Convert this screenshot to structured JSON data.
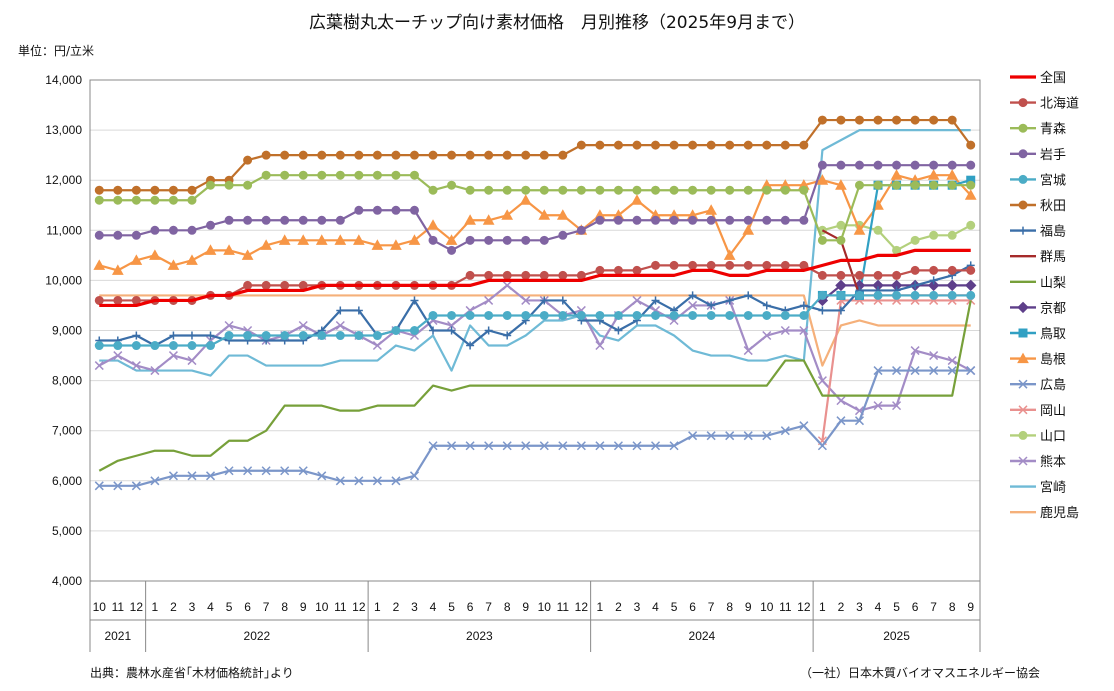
{
  "chart_data": {
    "type": "line",
    "title": "広葉樹丸太ーチップ向け素材価格　月別推移（2025年9月まで）",
    "unit_label": "単位：円/立米",
    "source": "出典：農林水産省｢木材価格統計｣より",
    "credit": "（一社）日本木質バイオマスエネルギー協会",
    "ylim": [
      4000,
      14000
    ],
    "yticks": [
      "4,000",
      "5,000",
      "6,000",
      "7,000",
      "8,000",
      "9,000",
      "10,000",
      "11,000",
      "12,000",
      "13,000",
      "14,000"
    ],
    "month_labels": [
      "10",
      "11",
      "12",
      "1",
      "2",
      "3",
      "4",
      "5",
      "6",
      "7",
      "8",
      "9",
      "10",
      "11",
      "12",
      "1",
      "2",
      "3",
      "4",
      "5",
      "6",
      "7",
      "8",
      "9",
      "10",
      "11",
      "12",
      "1",
      "2",
      "3",
      "4",
      "5",
      "6",
      "7",
      "8",
      "9",
      "10",
      "11",
      "12",
      "1",
      "2",
      "3",
      "4",
      "5",
      "6",
      "7",
      "8",
      "9"
    ],
    "years": [
      {
        "label": "2021",
        "start": 0,
        "count": 3
      },
      {
        "label": "2022",
        "start": 3,
        "count": 12
      },
      {
        "label": "2023",
        "start": 15,
        "count": 12
      },
      {
        "label": "2024",
        "start": 27,
        "count": 12
      },
      {
        "label": "2025",
        "start": 39,
        "count": 9
      }
    ],
    "series": [
      {
        "name": "全国",
        "color": "#ee0000",
        "marker": "none",
        "width": 3.2,
        "values": [
          9500,
          9500,
          9500,
          9600,
          9600,
          9600,
          9700,
          9700,
          9800,
          9800,
          9800,
          9800,
          9900,
          9900,
          9900,
          9900,
          9900,
          9900,
          9900,
          9900,
          9900,
          10000,
          10000,
          10000,
          10000,
          10000,
          10000,
          10100,
          10100,
          10100,
          10100,
          10100,
          10200,
          10200,
          10100,
          10100,
          10200,
          10200,
          10200,
          10300,
          10400,
          10400,
          10500,
          10500,
          10600,
          10600,
          10600,
          10600
        ]
      },
      {
        "name": "北海道",
        "color": "#c0504d",
        "marker": "circle",
        "values": [
          9600,
          9600,
          9600,
          9600,
          9600,
          9600,
          9700,
          9700,
          9900,
          9900,
          9900,
          9900,
          9900,
          9900,
          9900,
          9900,
          9900,
          9900,
          9900,
          9900,
          10100,
          10100,
          10100,
          10100,
          10100,
          10100,
          10100,
          10200,
          10200,
          10200,
          10300,
          10300,
          10300,
          10300,
          10300,
          10300,
          10300,
          10300,
          10300,
          10100,
          10100,
          10100,
          10100,
          10100,
          10200,
          10200,
          10200,
          10200
        ]
      },
      {
        "name": "青森",
        "color": "#9bbb59",
        "marker": "circle",
        "values": [
          11600,
          11600,
          11600,
          11600,
          11600,
          11600,
          11900,
          11900,
          11900,
          12100,
          12100,
          12100,
          12100,
          12100,
          12100,
          12100,
          12100,
          12100,
          11800,
          11900,
          11800,
          11800,
          11800,
          11800,
          11800,
          11800,
          11800,
          11800,
          11800,
          11800,
          11800,
          11800,
          11800,
          11800,
          11800,
          11800,
          11800,
          11800,
          11800,
          10800,
          10800,
          11900,
          11900,
          11900,
          11900,
          11900,
          11900,
          11900
        ]
      },
      {
        "name": "岩手",
        "color": "#8064a2",
        "marker": "circle",
        "values": [
          10900,
          10900,
          10900,
          11000,
          11000,
          11000,
          11100,
          11200,
          11200,
          11200,
          11200,
          11200,
          11200,
          11200,
          11400,
          11400,
          11400,
          11400,
          10800,
          10600,
          10800,
          10800,
          10800,
          10800,
          10800,
          10900,
          11000,
          11200,
          11200,
          11200,
          11200,
          11200,
          11200,
          11200,
          11200,
          11200,
          11200,
          11200,
          11200,
          12300,
          12300,
          12300,
          12300,
          12300,
          12300,
          12300,
          12300,
          12300
        ]
      },
      {
        "name": "宮城",
        "color": "#4bacc6",
        "marker": "circle",
        "values": [
          8700,
          8700,
          8700,
          8700,
          8700,
          8700,
          8700,
          8900,
          8900,
          8900,
          8900,
          8900,
          8900,
          8900,
          8900,
          8900,
          9000,
          9000,
          9300,
          9300,
          9300,
          9300,
          9300,
          9300,
          9300,
          9300,
          9300,
          9300,
          9300,
          9300,
          9300,
          9300,
          9300,
          9300,
          9300,
          9300,
          9300,
          9300,
          9300,
          9700,
          9700,
          9700,
          9700,
          9700,
          9700,
          9700,
          9700,
          9700
        ]
      },
      {
        "name": "秋田",
        "color": "#c0702a",
        "marker": "circle",
        "values": [
          11800,
          11800,
          11800,
          11800,
          11800,
          11800,
          12000,
          12000,
          12400,
          12500,
          12500,
          12500,
          12500,
          12500,
          12500,
          12500,
          12500,
          12500,
          12500,
          12500,
          12500,
          12500,
          12500,
          12500,
          12500,
          12500,
          12700,
          12700,
          12700,
          12700,
          12700,
          12700,
          12700,
          12700,
          12700,
          12700,
          12700,
          12700,
          12700,
          13200,
          13200,
          13200,
          13200,
          13200,
          13200,
          13200,
          13200,
          12700
        ]
      },
      {
        "name": "福島",
        "color": "#3a6ea8",
        "marker": "plus",
        "values": [
          8800,
          8800,
          8900,
          8700,
          8900,
          8900,
          8900,
          8800,
          8800,
          8800,
          8800,
          8800,
          9000,
          9400,
          9400,
          8900,
          9000,
          9600,
          9000,
          9000,
          8700,
          9000,
          8900,
          9200,
          9600,
          9600,
          9200,
          9200,
          9000,
          9200,
          9600,
          9400,
          9700,
          9500,
          9600,
          9700,
          9500,
          9400,
          9500,
          9400,
          9400,
          9800,
          9800,
          9800,
          9900,
          10000,
          10100,
          10300
        ]
      },
      {
        "name": "群馬",
        "color": "#a52a2a",
        "marker": "none",
        "values": [
          null,
          null,
          null,
          null,
          null,
          null,
          null,
          null,
          null,
          null,
          null,
          null,
          null,
          null,
          null,
          null,
          null,
          null,
          null,
          null,
          null,
          null,
          null,
          null,
          null,
          null,
          null,
          null,
          null,
          null,
          null,
          null,
          null,
          null,
          null,
          null,
          null,
          null,
          null,
          11000,
          10800,
          9700,
          9700,
          9700,
          9700,
          9700,
          9700,
          9700
        ]
      },
      {
        "name": "山梨",
        "color": "#77a03a",
        "marker": "none",
        "values": [
          6200,
          6400,
          6500,
          6600,
          6600,
          6500,
          6500,
          6800,
          6800,
          7000,
          7500,
          7500,
          7500,
          7400,
          7400,
          7500,
          7500,
          7500,
          7900,
          7800,
          7900,
          7900,
          7900,
          7900,
          7900,
          7900,
          7900,
          7900,
          7900,
          7900,
          7900,
          7900,
          7900,
          7900,
          7900,
          7900,
          7900,
          8400,
          8400,
          7700,
          7700,
          7700,
          7700,
          7700,
          7700,
          7700,
          7700,
          9600
        ]
      },
      {
        "name": "京都",
        "color": "#5e3f8a",
        "marker": "diamond",
        "values": [
          null,
          null,
          null,
          null,
          null,
          null,
          null,
          null,
          null,
          null,
          null,
          null,
          null,
          null,
          null,
          null,
          null,
          null,
          null,
          null,
          null,
          null,
          null,
          null,
          null,
          null,
          null,
          null,
          null,
          null,
          null,
          null,
          null,
          null,
          null,
          null,
          null,
          null,
          null,
          9600,
          9900,
          9900,
          9900,
          9900,
          9900,
          9900,
          9900,
          9900
        ]
      },
      {
        "name": "鳥取",
        "color": "#31a0c3",
        "marker": "square",
        "values": [
          null,
          null,
          null,
          null,
          null,
          null,
          null,
          null,
          null,
          null,
          null,
          null,
          null,
          null,
          null,
          null,
          null,
          null,
          null,
          null,
          null,
          null,
          null,
          null,
          null,
          null,
          null,
          null,
          null,
          null,
          null,
          null,
          null,
          null,
          null,
          null,
          null,
          null,
          null,
          9700,
          9700,
          9700,
          11900,
          11900,
          11900,
          11900,
          11900,
          12000
        ]
      },
      {
        "name": "島根",
        "color": "#f79646",
        "marker": "triangle",
        "values": [
          10300,
          10200,
          10400,
          10500,
          10300,
          10400,
          10600,
          10600,
          10500,
          10700,
          10800,
          10800,
          10800,
          10800,
          10800,
          10700,
          10700,
          10800,
          11100,
          10800,
          11200,
          11200,
          11300,
          11600,
          11300,
          11300,
          11000,
          11300,
          11300,
          11600,
          11300,
          11300,
          11300,
          11400,
          10500,
          11000,
          11900,
          11900,
          11900,
          12000,
          11900,
          11000,
          11500,
          12100,
          12000,
          12100,
          12100,
          11700
        ]
      },
      {
        "name": "広島",
        "color": "#7b96c9",
        "marker": "x",
        "values": [
          5900,
          5900,
          5900,
          6000,
          6100,
          6100,
          6100,
          6200,
          6200,
          6200,
          6200,
          6200,
          6100,
          6000,
          6000,
          6000,
          6000,
          6100,
          6700,
          6700,
          6700,
          6700,
          6700,
          6700,
          6700,
          6700,
          6700,
          6700,
          6700,
          6700,
          6700,
          6700,
          6900,
          6900,
          6900,
          6900,
          6900,
          7000,
          7100,
          6700,
          7200,
          7200,
          8200,
          8200,
          8200,
          8200,
          8200,
          8200
        ]
      },
      {
        "name": "岡山",
        "color": "#e9918f",
        "marker": "x",
        "values": [
          null,
          null,
          null,
          null,
          null,
          null,
          null,
          null,
          null,
          null,
          null,
          null,
          null,
          null,
          null,
          null,
          null,
          null,
          null,
          null,
          null,
          null,
          null,
          null,
          null,
          null,
          null,
          null,
          null,
          null,
          null,
          null,
          null,
          null,
          null,
          null,
          null,
          null,
          null,
          6800,
          9600,
          9600,
          9600,
          9600,
          9600,
          9600,
          9600,
          9600
        ]
      },
      {
        "name": "山口",
        "color": "#b3d07c",
        "marker": "circle",
        "values": [
          null,
          null,
          null,
          null,
          null,
          null,
          null,
          null,
          null,
          null,
          null,
          null,
          null,
          null,
          null,
          null,
          null,
          null,
          null,
          null,
          null,
          null,
          null,
          null,
          null,
          null,
          null,
          null,
          null,
          null,
          null,
          null,
          null,
          null,
          null,
          null,
          null,
          null,
          null,
          11000,
          11100,
          11100,
          11000,
          10600,
          10800,
          10900,
          10900,
          11100
        ]
      },
      {
        "name": "熊本",
        "color": "#a38cc6",
        "marker": "x",
        "values": [
          8300,
          8500,
          8300,
          8200,
          8500,
          8400,
          8800,
          9100,
          9000,
          8800,
          8900,
          9100,
          8900,
          9100,
          8900,
          8700,
          9000,
          8900,
          9200,
          9100,
          9400,
          9600,
          9900,
          9600,
          9600,
          9300,
          9400,
          8700,
          9300,
          9600,
          9400,
          9200,
          9500,
          9500,
          9600,
          8600,
          8900,
          9000,
          9000,
          8000,
          7600,
          7400,
          7500,
          7500,
          8600,
          8500,
          8400,
          8200
        ]
      },
      {
        "name": "宮崎",
        "color": "#6fbad6",
        "marker": "none",
        "values": [
          8400,
          8400,
          8200,
          8200,
          8200,
          8200,
          8100,
          8500,
          8500,
          8300,
          8300,
          8300,
          8300,
          8400,
          8400,
          8400,
          8700,
          8600,
          8900,
          8200,
          9100,
          8700,
          8700,
          8900,
          9200,
          9200,
          9300,
          8900,
          8800,
          9100,
          9100,
          8900,
          8600,
          8500,
          8500,
          8400,
          8400,
          8500,
          8400,
          12600,
          12800,
          13000,
          13000,
          13000,
          13000,
          13000,
          13000,
          13000
        ]
      },
      {
        "name": "鹿児島",
        "color": "#f5b07a",
        "marker": "none",
        "values": [
          9700,
          9700,
          9700,
          9700,
          9700,
          9700,
          9700,
          9700,
          9700,
          9700,
          9700,
          9700,
          9700,
          9700,
          9700,
          9700,
          9700,
          9700,
          9700,
          9700,
          9700,
          9700,
          9700,
          9700,
          9700,
          9700,
          9700,
          9700,
          9700,
          9700,
          9700,
          9700,
          9700,
          9700,
          9700,
          9700,
          9700,
          9700,
          9700,
          8300,
          9100,
          9200,
          9100,
          9100,
          9100,
          9100,
          9100,
          9100
        ]
      }
    ]
  }
}
